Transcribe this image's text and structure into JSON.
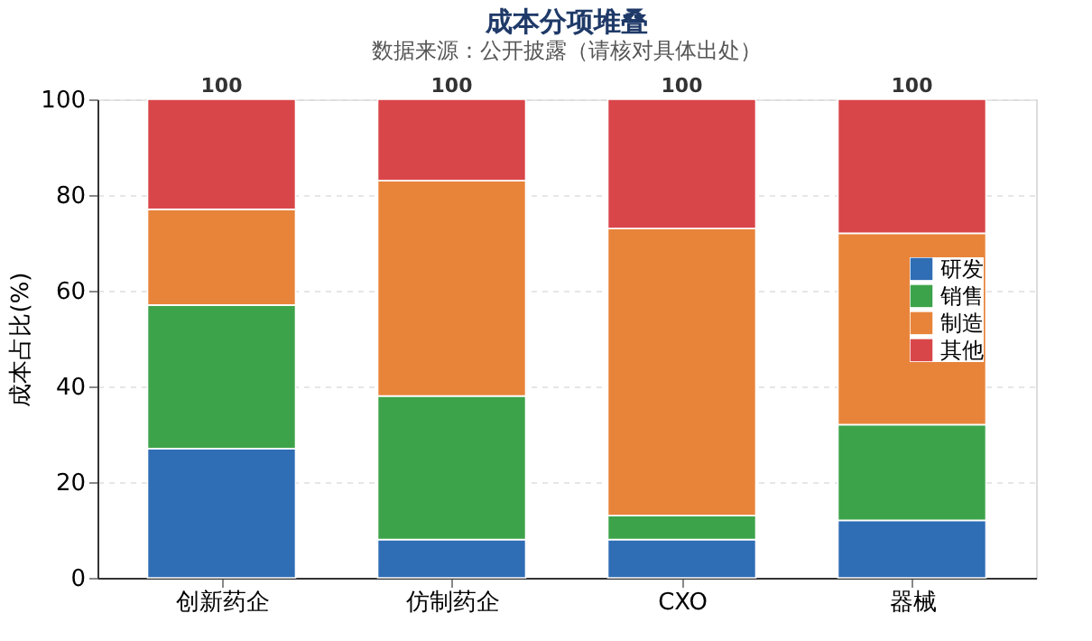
{
  "chart_data": {
    "type": "bar",
    "title": "成本分项堆叠",
    "subtitle": "数据来源：公开披露（请核对具体出处）",
    "ylabel": "成本占比(%)",
    "categories": [
      "创新药企",
      "仿制药企",
      "CXO",
      "器械"
    ],
    "series": [
      {
        "name": "研发",
        "color": "#2f6db5",
        "values": [
          27,
          8,
          8,
          12
        ]
      },
      {
        "name": "销售",
        "color": "#3da34a",
        "values": [
          30,
          30,
          5,
          20
        ]
      },
      {
        "name": "制造",
        "color": "#e8843a",
        "values": [
          20,
          45,
          60,
          40
        ]
      },
      {
        "name": "其他",
        "color": "#d9464a",
        "values": [
          23,
          17,
          27,
          28
        ]
      }
    ],
    "stacked": true,
    "ylim": [
      0,
      100
    ],
    "yticks": [
      0,
      20,
      40,
      60,
      80,
      100
    ],
    "grid": "y",
    "legend": "right",
    "totals": [
      "100",
      "100",
      "100",
      "100"
    ]
  }
}
